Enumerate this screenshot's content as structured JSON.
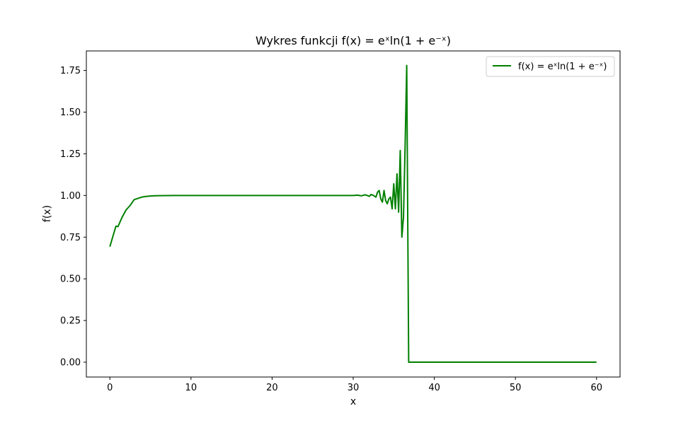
{
  "chart_data": {
    "type": "line",
    "title": "Wykres funkcji f(x) = eˣln(1 + e⁻ˣ)",
    "xlabel": "x",
    "ylabel": "f(x)",
    "xlim": [
      -2.9,
      62.9
    ],
    "ylim": [
      -0.089,
      1.867
    ],
    "xticks": [
      0,
      10,
      20,
      30,
      40,
      50,
      60
    ],
    "xtick_labels": [
      "0",
      "10",
      "20",
      "30",
      "40",
      "50",
      "60"
    ],
    "yticks": [
      0.0,
      0.25,
      0.5,
      0.75,
      1.0,
      1.25,
      1.5,
      1.75
    ],
    "ytick_labels": [
      "0.00",
      "0.25",
      "0.50",
      "0.75",
      "1.00",
      "1.25",
      "1.50",
      "1.75"
    ],
    "grid": false,
    "legend_position": "top-right",
    "series": [
      {
        "name": "f(x) = eˣln(1 + e⁻ˣ)",
        "color": "#008000",
        "x": [
          0,
          0.25,
          0.5,
          0.75,
          1,
          1.5,
          2,
          2.5,
          3,
          3.5,
          4,
          4.5,
          5,
          5.5,
          6,
          7,
          8,
          10,
          15,
          20,
          25,
          29.5,
          30,
          30.5,
          31,
          31.5,
          32,
          32.2,
          32.5,
          32.8,
          33.0,
          33.2,
          33.4,
          33.6,
          33.8,
          34.0,
          34.2,
          34.4,
          34.6,
          34.8,
          35.0,
          35.2,
          35.4,
          35.6,
          35.8,
          36.0,
          36.2,
          36.4,
          36.6,
          36.84,
          37.0,
          38,
          40,
          50,
          60
        ],
        "y": [
          0.6931,
          0.7346,
          0.7756,
          0.816,
          0.8133,
          0.8689,
          0.9134,
          0.9405,
          0.9752,
          0.9833,
          0.9909,
          0.9945,
          0.9966,
          0.998,
          0.9988,
          0.9995,
          0.9998,
          1.0,
          1.0,
          1.0,
          1.0,
          1.0,
          1.0,
          1.002,
          0.998,
          1.004,
          0.995,
          1.006,
          1.0,
          0.99,
          1.02,
          1.03,
          0.98,
          0.96,
          1.03,
          0.97,
          0.95,
          0.98,
          0.99,
          0.92,
          1.07,
          0.92,
          1.13,
          0.9,
          1.27,
          0.75,
          0.87,
          1.3,
          1.78,
          0.0,
          0.0,
          0.0,
          0.0,
          0.0,
          0.0
        ]
      }
    ]
  }
}
